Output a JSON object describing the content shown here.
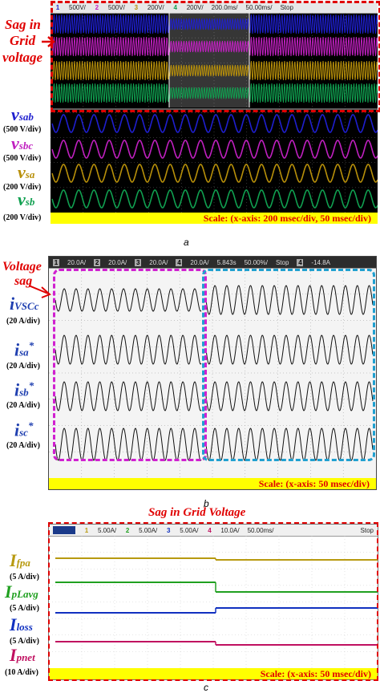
{
  "panel_a": {
    "header": [
      "1",
      "500V/",
      "2",
      "500V/",
      "3",
      "200V/",
      "4",
      "200V/",
      "200.0ms/",
      "50.00ms/",
      "Stop"
    ],
    "annotation": [
      "Sag in",
      "Grid",
      "voltage"
    ],
    "signals": [
      {
        "name": "v",
        "sub": "sab",
        "scale": "(500 V/div)",
        "color": "#1f1fcf"
      },
      {
        "name": "v",
        "sub": "sbc",
        "scale": "(500 V/div)",
        "color": "#c020c0"
      },
      {
        "name": "v",
        "sub": "sa",
        "scale": "(200 V/div)",
        "color": "#b8900a"
      },
      {
        "name": "v",
        "sub": "sb",
        "scale": "(200 V/div)",
        "color": "#10a050"
      }
    ],
    "scale_text": "Scale: (x-axis: 200 msec/div, 50 msec/div)",
    "caption": "a"
  },
  "panel_b": {
    "header": [
      "1",
      "20.0A/",
      "2",
      "20.0A/",
      "3",
      "20.0A/",
      "4",
      "20.0A/",
      "5.843s",
      "50.00%/",
      "Stop",
      "4",
      "-14.8A"
    ],
    "annotation": [
      "Voltage",
      "sag"
    ],
    "signals": [
      {
        "name": "i",
        "sub": "VSCc",
        "sup": "",
        "scale": "(20 A/div)"
      },
      {
        "name": "i",
        "sub": "sa",
        "sup": "*",
        "scale": "(20 A/div)"
      },
      {
        "name": "i",
        "sub": "sb",
        "sup": "*",
        "scale": "(20 A/div)"
      },
      {
        "name": "i",
        "sub": "sc",
        "sup": "*",
        "scale": "(20 A/div)"
      }
    ],
    "scale_text": "Scale: (x-axis: 50 msec/div)",
    "caption": "b"
  },
  "panel_c": {
    "title": "Sag in Grid Voltage",
    "header": [
      "1",
      "5.00A/",
      "2",
      "5.00A/",
      "3",
      "5.00A/",
      "4",
      "10.0A/",
      "50.00ms/",
      "Stop"
    ],
    "signals": [
      {
        "name": "I",
        "sub": "fpa",
        "scale": "(5 A/div)",
        "color": "#b89a10"
      },
      {
        "name": "I",
        "sub": "pLavg",
        "scale": "(5 A/div)",
        "color": "#20a020"
      },
      {
        "name": "I",
        "sub": "loss",
        "scale": "(5 A/div)",
        "color": "#1030c0"
      },
      {
        "name": "I",
        "sub": "pnet",
        "scale": "(10 A/div)",
        "color": "#c01060"
      }
    ],
    "scale_text": "Scale: (x-axis: 50 msec/div)",
    "caption": "c"
  }
}
